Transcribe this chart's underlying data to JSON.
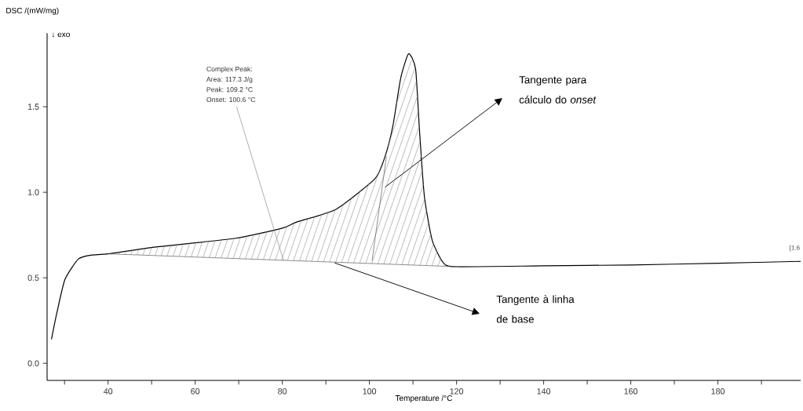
{
  "chart_data": {
    "type": "line",
    "xlabel": "Temperature /°C",
    "ylabel": "DSC /(mW/mg)",
    "xlim": [
      26,
      199
    ],
    "ylim": [
      -0.1,
      1.93
    ],
    "xticks": [
      {
        "value": 30,
        "label": null
      },
      40,
      {
        "value": 50,
        "label": null
      },
      60,
      {
        "value": 70,
        "label": null
      },
      80,
      {
        "value": 90,
        "label": null
      },
      100,
      {
        "value": 110,
        "label": null
      },
      120,
      {
        "value": 130,
        "label": null
      },
      140,
      {
        "value": 150,
        "label": null
      },
      160,
      {
        "value": 170,
        "label": null
      },
      180,
      {
        "value": 190,
        "label": null
      }
    ],
    "yticks": [
      {
        "value": 0,
        "label": "0.0"
      },
      {
        "value": 0.5,
        "label": "0.5"
      },
      {
        "value": 1.0,
        "label": "1.0"
      },
      {
        "value": 1.5,
        "label": "1.5"
      }
    ],
    "series": [
      {
        "color": "#000000",
        "x": [
          27,
          28.2,
          30.1,
          33.2,
          36.2,
          40,
          51,
          69,
          80,
          83.3,
          92.3,
          101.3,
          103.6,
          105.4,
          107.2,
          109,
          110.6,
          111.5,
          112.6,
          114.4,
          116.9,
          119.7,
          140,
          160,
          180,
          199
        ],
        "values": [
          0.14,
          0.29,
          0.49,
          0.61,
          0.633,
          0.64,
          0.68,
          0.73,
          0.79,
          0.826,
          0.9,
          1.08,
          1.21,
          1.39,
          1.67,
          1.81,
          1.72,
          1.36,
          0.98,
          0.72,
          0.59,
          0.565,
          0.57,
          0.575,
          0.585,
          0.596
        ]
      },
      {
        "color": "#555555",
        "marker": "none",
        "x": [
          40,
          120
        ],
        "values": [
          0.64,
          0.565
        ]
      },
      {
        "color": "#555555",
        "marker": "none",
        "x": [
          100.6,
          103.9
        ],
        "values": [
          0.6,
          1.21
        ]
      }
    ],
    "annotations": [
      "↓ exo",
      "Complex Peak:",
      "Area:  117.3 J/g",
      "Peak:  109.2 °C",
      {
        "text": "Onset:  100.6 °C",
        "x": 80.3,
        "y": 0.6
      },
      "Tangente para cálculo do *onset*",
      "Tangente à linha de base",
      "[1.6"
    ]
  }
}
